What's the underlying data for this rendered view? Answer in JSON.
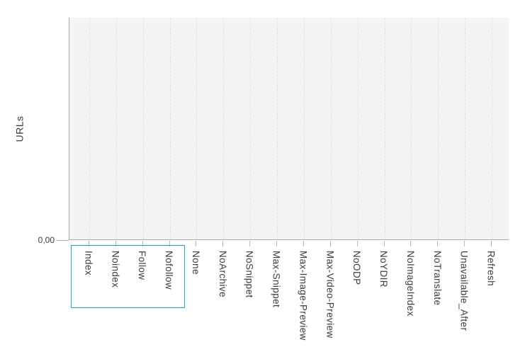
{
  "chart_data": {
    "type": "bar",
    "title": "",
    "xlabel": "",
    "ylabel": "URLs",
    "categories": [
      "Index",
      "Noindex",
      "Follow",
      "Nofollow",
      "None",
      "NoArchive",
      "NoSnippet",
      "Max-Snippet",
      "Max-Image-Preview",
      "Max-Video-Preview",
      "NoODP",
      "NoYDIR",
      "NoImageIndex",
      "NoTranslate",
      "Unavailable_After",
      "Refresh"
    ],
    "values": [
      0,
      0,
      0,
      0,
      0,
      0,
      0,
      0,
      0,
      0,
      0,
      0,
      0,
      0,
      0,
      0
    ],
    "y_tick_labels": [
      "0,00"
    ],
    "grid": "vertical-dashed",
    "legend": "none",
    "selection_box_categories": [
      "Index",
      "Noindex",
      "Follow",
      "Nofollow"
    ]
  },
  "colors": {
    "page_background": "#ffffff",
    "plot_background": "#f4f4f4",
    "gridline": "#e0e0e0",
    "axis": "#a9a9a9",
    "text": "#3b3b3b",
    "selection_border": "#4d93a1"
  }
}
